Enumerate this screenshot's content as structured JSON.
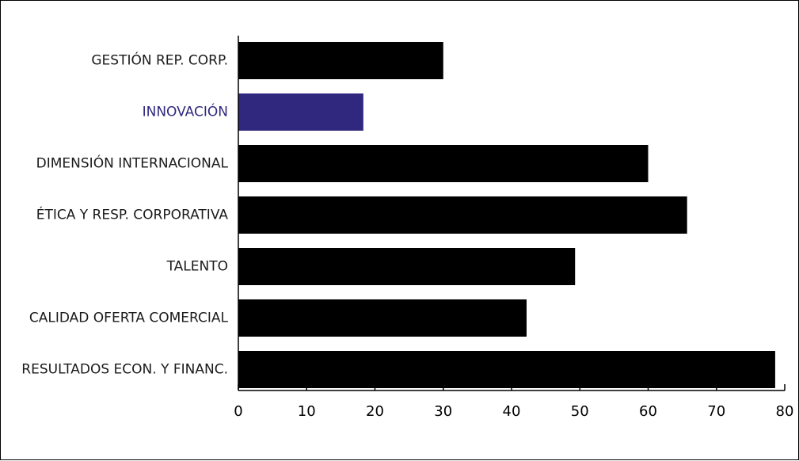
{
  "chart_data": {
    "type": "bar",
    "orientation": "horizontal",
    "title": "",
    "xlabel": "",
    "ylabel": "",
    "categories": [
      "GESTIÓN REP. CORP.",
      "INNOVACIÓN",
      "DIMENSIÓN INTERNACIONAL",
      "ÉTICA Y RESP. CORPORATIVA",
      "TALENTO",
      "CALIDAD OFERTA COMERCIAL",
      "RESULTADOS ECON. Y FINANC."
    ],
    "values": [
      30,
      18.3,
      60,
      65.7,
      49.3,
      42.2,
      78.6
    ],
    "highlight_index": 1,
    "xlim": [
      0,
      80
    ],
    "xticks": [
      "0",
      "10",
      "20",
      "30",
      "40",
      "50",
      "60",
      "70",
      "80"
    ],
    "grid": false,
    "legend": "none",
    "colors": {
      "bar": "#000000",
      "highlight": "#30287f",
      "label": "#1a1a1a",
      "highlight_label": "#30287f"
    }
  }
}
